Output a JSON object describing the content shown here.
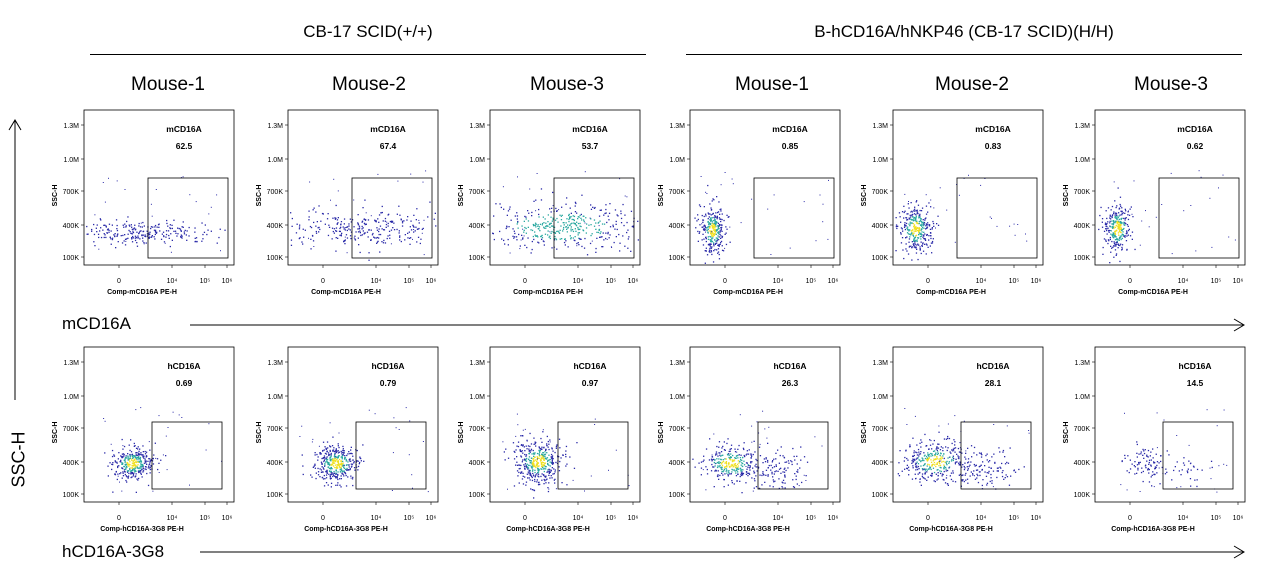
{
  "groups": [
    {
      "title": "CB-17 SCID(+/+)"
    },
    {
      "title": "B-hCD16A/hNKP46 (CB-17 SCID)(H/H)"
    }
  ],
  "mouse_labels": [
    "Mouse-1",
    "Mouse-2",
    "Mouse-3",
    "Mouse-1",
    "Mouse-2",
    "Mouse-3"
  ],
  "row_labels": [
    "mCD16A",
    "hCD16A-3G8"
  ],
  "y_main_label": "SSC-H",
  "colors": {
    "dot_low": "#2a2aa8",
    "dot_mid": "#2aa8a0",
    "dot_high": "#f0e020",
    "frame": "#000000"
  },
  "chart_data": {
    "type": "scatter",
    "y_axis": {
      "label": "SSC-H",
      "ticks": [
        "100K",
        "400K",
        "700K",
        "1.0M",
        "1.3M"
      ]
    },
    "x_axis_ticks": [
      "0",
      "10⁴",
      "10⁵",
      "10⁶"
    ],
    "rows": [
      {
        "marker": "mCD16A",
        "xlabel": "Comp-mCD16A PE-H",
        "panels": [
          {
            "mouse": "Mouse-1",
            "gate": "mCD16A",
            "percent": "62.5"
          },
          {
            "mouse": "Mouse-2",
            "gate": "mCD16A",
            "percent": "67.4"
          },
          {
            "mouse": "Mouse-3",
            "gate": "mCD16A",
            "percent": "53.7"
          },
          {
            "mouse": "Mouse-1",
            "gate": "mCD16A",
            "percent": "0.85"
          },
          {
            "mouse": "Mouse-2",
            "gate": "mCD16A",
            "percent": "0.83"
          },
          {
            "mouse": "Mouse-3",
            "gate": "mCD16A",
            "percent": "0.62"
          }
        ]
      },
      {
        "marker": "hCD16A-3G8",
        "xlabel": "Comp-hCD16A-3G8 PE-H",
        "panels": [
          {
            "mouse": "Mouse-1",
            "gate": "hCD16A",
            "percent": "0.69"
          },
          {
            "mouse": "Mouse-2",
            "gate": "hCD16A",
            "percent": "0.79"
          },
          {
            "mouse": "Mouse-3",
            "gate": "hCD16A",
            "percent": "0.97"
          },
          {
            "mouse": "Mouse-1",
            "gate": "hCD16A",
            "percent": "26.3"
          },
          {
            "mouse": "Mouse-2",
            "gate": "hCD16A",
            "percent": "28.1"
          },
          {
            "mouse": "Mouse-3",
            "gate": "hCD16A",
            "percent": "14.5"
          }
        ]
      }
    ]
  }
}
